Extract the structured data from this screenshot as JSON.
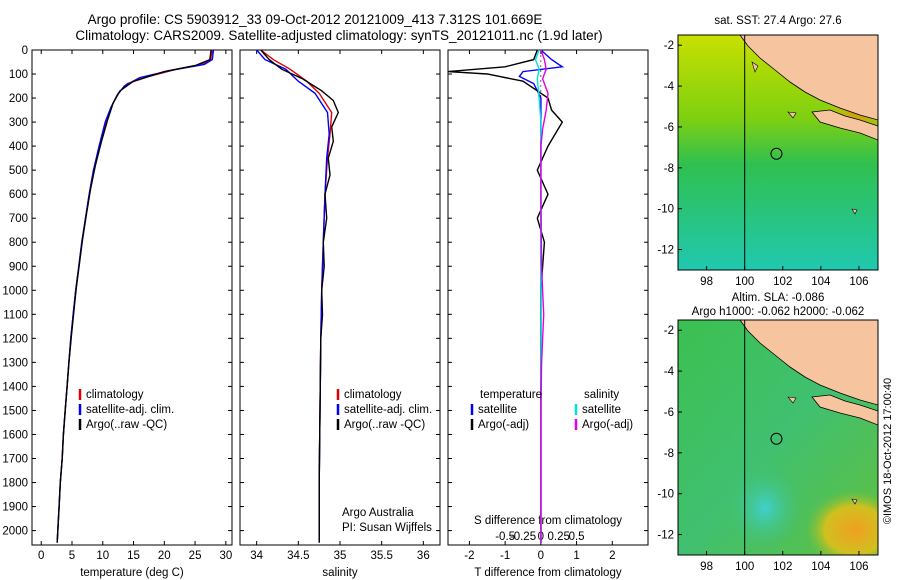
{
  "title_line1": "Argo profile: CS 5903912_33 09-Oct-2012 20121009_413 7.312S 101.669E",
  "title_line2": "Climatology: CARS2009. Satellite-adjusted climatology: synTS_20121011.nc (1.9d later)",
  "credit": {
    "line1": "Argo Australia",
    "line2": "PI: Susan Wijffels"
  },
  "sidebar_text": "©IMOS 18-Oct-2012 17:00:40",
  "colors": {
    "climatology": "#e00000",
    "satellite": "#0000ff",
    "argo": "#000000",
    "sat_salinity": "#00e0e0",
    "argo_salinity_adj": "#e000e0"
  },
  "chart_data": [
    {
      "type": "line",
      "name": "temperature",
      "xlabel": "temperature (deg C)",
      "ylabel": "",
      "xlim": [
        -1.5,
        31
      ],
      "ylim": [
        2060,
        0
      ],
      "xticks": [
        0,
        5,
        10,
        15,
        20,
        25,
        30
      ],
      "yticks": [
        0,
        100,
        200,
        300,
        400,
        500,
        600,
        700,
        800,
        900,
        1000,
        1100,
        1200,
        1300,
        1400,
        1500,
        1600,
        1700,
        1800,
        1900,
        2000
      ],
      "legend": [
        "climatology",
        "satellite-adj. clim.",
        "Argo(..raw -QC)"
      ],
      "series": [
        {
          "name": "climatology",
          "color": "#e00000",
          "points": [
            [
              27.8,
              0
            ],
            [
              27.5,
              40
            ],
            [
              26,
              60
            ],
            [
              22,
              80
            ],
            [
              17.5,
              110
            ],
            [
              14,
              140
            ],
            [
              12.5,
              180
            ],
            [
              11.5,
              230
            ],
            [
              10.5,
              300
            ],
            [
              9.5,
              400
            ],
            [
              8.5,
              500
            ],
            [
              7.8,
              600
            ],
            [
              7.2,
              700
            ],
            [
              6.6,
              800
            ],
            [
              6.1,
              900
            ],
            [
              5.6,
              1000
            ],
            [
              5.2,
              1100
            ],
            [
              4.8,
              1200
            ],
            [
              4.5,
              1300
            ],
            [
              4.2,
              1400
            ],
            [
              3.9,
              1500
            ],
            [
              3.6,
              1600
            ],
            [
              3.4,
              1700
            ],
            [
              3.1,
              1800
            ],
            [
              2.9,
              1900
            ],
            [
              2.7,
              2000
            ],
            [
              2.6,
              2050
            ]
          ]
        },
        {
          "name": "satellite-adj. clim.",
          "color": "#0000ff",
          "points": [
            [
              28,
              0
            ],
            [
              27.8,
              40
            ],
            [
              26.5,
              60
            ],
            [
              21,
              85
            ],
            [
              16,
              115
            ],
            [
              13.5,
              150
            ],
            [
              12.3,
              190
            ],
            [
              11.3,
              240
            ],
            [
              10.4,
              300
            ],
            [
              9.4,
              400
            ],
            [
              8.5,
              500
            ],
            [
              7.8,
              600
            ],
            [
              7.2,
              700
            ],
            [
              6.6,
              800
            ],
            [
              6.1,
              900
            ],
            [
              5.6,
              1000
            ],
            [
              5.2,
              1100
            ],
            [
              4.8,
              1200
            ],
            [
              4.5,
              1300
            ],
            [
              4.2,
              1400
            ],
            [
              3.9,
              1500
            ],
            [
              3.6,
              1600
            ],
            [
              3.4,
              1700
            ],
            [
              3.1,
              1800
            ],
            [
              2.9,
              1900
            ],
            [
              2.7,
              2000
            ],
            [
              2.6,
              2050
            ]
          ]
        },
        {
          "name": "Argo(..raw -QC)",
          "color": "#000000",
          "points": [
            [
              27.6,
              0
            ],
            [
              27.4,
              40
            ],
            [
              25,
              65
            ],
            [
              20,
              90
            ],
            [
              15,
              130
            ],
            [
              12.8,
              170
            ],
            [
              11.7,
              220
            ],
            [
              10.8,
              290
            ],
            [
              9.8,
              380
            ],
            [
              8.8,
              480
            ],
            [
              8,
              580
            ],
            [
              7.3,
              690
            ],
            [
              6.7,
              790
            ],
            [
              6.2,
              890
            ],
            [
              5.7,
              990
            ],
            [
              5.3,
              1090
            ],
            [
              4.9,
              1190
            ],
            [
              4.5,
              1300
            ],
            [
              4.2,
              1400
            ],
            [
              3.9,
              1500
            ],
            [
              3.6,
              1600
            ],
            [
              3.4,
              1700
            ],
            [
              3.1,
              1800
            ],
            [
              2.9,
              1900
            ],
            [
              2.7,
              2000
            ],
            [
              2.6,
              2050
            ]
          ]
        }
      ]
    },
    {
      "type": "line",
      "name": "salinity",
      "xlabel": "salinity",
      "ylabel": "",
      "xlim": [
        33.8,
        36.2
      ],
      "ylim": [
        2060,
        0
      ],
      "xticks": [
        34,
        34.5,
        35,
        35.5,
        36
      ],
      "xticklabels": [
        "34",
        "34.5",
        "35",
        "35.5",
        "36"
      ],
      "legend": [
        "climatology",
        "satellite-adj. clim.",
        "Argo(..raw -QC)"
      ],
      "series": [
        {
          "name": "climatology",
          "color": "#e00000",
          "points": [
            [
              34.05,
              0
            ],
            [
              34.2,
              40
            ],
            [
              34.4,
              80
            ],
            [
              34.6,
              130
            ],
            [
              34.75,
              180
            ],
            [
              34.9,
              260
            ],
            [
              34.88,
              350
            ],
            [
              34.85,
              450
            ],
            [
              34.82,
              600
            ],
            [
              34.8,
              800
            ],
            [
              34.78,
              1000
            ],
            [
              34.77,
              1200
            ],
            [
              34.76,
              1500
            ],
            [
              34.75,
              1800
            ],
            [
              34.75,
              2050
            ]
          ]
        },
        {
          "name": "satellite-adj. clim.",
          "color": "#0000ff",
          "points": [
            [
              34.0,
              0
            ],
            [
              34.1,
              40
            ],
            [
              34.35,
              80
            ],
            [
              34.5,
              130
            ],
            [
              34.7,
              180
            ],
            [
              34.85,
              260
            ],
            [
              34.87,
              350
            ],
            [
              34.84,
              450
            ],
            [
              34.82,
              600
            ],
            [
              34.8,
              800
            ],
            [
              34.78,
              1000
            ],
            [
              34.77,
              1200
            ],
            [
              34.76,
              1500
            ],
            [
              34.75,
              1800
            ],
            [
              34.75,
              2050
            ]
          ]
        },
        {
          "name": "Argo(..raw -QC)",
          "color": "#000000",
          "points": [
            [
              34.05,
              0
            ],
            [
              34.15,
              40
            ],
            [
              34.3,
              80
            ],
            [
              34.55,
              120
            ],
            [
              34.78,
              170
            ],
            [
              34.92,
              210
            ],
            [
              34.98,
              260
            ],
            [
              34.9,
              320
            ],
            [
              34.92,
              380
            ],
            [
              34.86,
              450
            ],
            [
              34.88,
              520
            ],
            [
              34.82,
              600
            ],
            [
              34.84,
              700
            ],
            [
              34.8,
              800
            ],
            [
              34.81,
              900
            ],
            [
              34.78,
              1000
            ],
            [
              34.79,
              1100
            ],
            [
              34.77,
              1200
            ],
            [
              34.76,
              1500
            ],
            [
              34.75,
              1800
            ],
            [
              34.75,
              2050
            ]
          ]
        }
      ]
    },
    {
      "type": "line",
      "name": "difference",
      "xlabel": "T difference from climatology",
      "xlabel_top": "S difference from climatology",
      "xlim": [
        -2.6,
        3
      ],
      "ylim": [
        2060,
        0
      ],
      "xticks": [
        -2,
        -1,
        0,
        1,
        2
      ],
      "s_ticks": [
        -0.5,
        -0.25,
        0,
        0.25,
        0.5
      ],
      "s_ticklabels": [
        "-0.5",
        "-0.25",
        "0",
        "0.25",
        "0.5"
      ],
      "legend_left_title": "temperature",
      "legend_right_title": "salinity",
      "legend": [
        "satellite",
        "Argo(-adj)",
        "satellite",
        "Argo(-adj)"
      ],
      "series": [
        {
          "name": "T satellite",
          "color": "#0000ff",
          "points": [
            [
              0,
              0
            ],
            [
              0.3,
              40
            ],
            [
              0.6,
              70
            ],
            [
              -0.5,
              90
            ],
            [
              -0.6,
              110
            ],
            [
              -0.2,
              140
            ],
            [
              0,
              200
            ],
            [
              0,
              300
            ],
            [
              0,
              500
            ],
            [
              0,
              800
            ],
            [
              0,
              1200
            ],
            [
              0,
              1600
            ],
            [
              0,
              2050
            ]
          ]
        },
        {
          "name": "T Argo(-adj)",
          "color": "#000000",
          "points": [
            [
              -0.1,
              0
            ],
            [
              -0.2,
              40
            ],
            [
              -1,
              70
            ],
            [
              -2.6,
              90
            ],
            [
              -1.5,
              100
            ],
            [
              -0.5,
              130
            ],
            [
              0.2,
              200
            ],
            [
              0.3,
              250
            ],
            [
              0.6,
              300
            ],
            [
              0.2,
              400
            ],
            [
              -0.1,
              500
            ],
            [
              0.2,
              600
            ],
            [
              -0.1,
              700
            ],
            [
              0.1,
              800
            ],
            [
              0,
              1000
            ],
            [
              0,
              1500
            ],
            [
              0,
              2050
            ]
          ]
        },
        {
          "name": "S satellite",
          "color": "#00e0e0",
          "points": [
            [
              -0.05,
              0
            ],
            [
              -0.15,
              40
            ],
            [
              -0.05,
              80
            ],
            [
              -0.1,
              120
            ],
            [
              -0.05,
              200
            ],
            [
              0,
              300
            ],
            [
              0,
              500
            ],
            [
              0,
              800
            ],
            [
              0,
              1200
            ],
            [
              0,
              1600
            ],
            [
              0,
              2050
            ]
          ]
        },
        {
          "name": "S Argo(-adj)",
          "color": "#e000e0",
          "points": [
            [
              0,
              0
            ],
            [
              0.1,
              40
            ],
            [
              0.15,
              80
            ],
            [
              0.05,
              120
            ],
            [
              0.2,
              180
            ],
            [
              0.15,
              250
            ],
            [
              0.05,
              330
            ],
            [
              0,
              400
            ],
            [
              0,
              600
            ],
            [
              0.02,
              900
            ],
            [
              0.05,
              1000
            ],
            [
              0.08,
              1100
            ],
            [
              0.02,
              1300
            ],
            [
              0,
              1500
            ],
            [
              0,
              2050
            ]
          ]
        }
      ]
    },
    {
      "type": "heatmap",
      "name": "sst-map",
      "title": "sat. SST: 27.4  Argo: 27.6",
      "xlim": [
        96.5,
        107
      ],
      "ylim": [
        -13,
        -1.5
      ],
      "xticks": [
        98,
        100,
        102,
        104,
        106
      ],
      "yticks": [
        -2,
        -4,
        -6,
        -8,
        -10,
        -12
      ],
      "argo_position": [
        101.669,
        -7.312
      ]
    },
    {
      "type": "heatmap",
      "name": "sla-map",
      "title_line1": "Altim. SLA: -0.086",
      "title_line2": "Argo h1000: -0.062 h2000: -0.062",
      "xlim": [
        96.5,
        107
      ],
      "ylim": [
        -13,
        -1.5
      ],
      "xticks": [
        98,
        100,
        102,
        104,
        106
      ],
      "yticks": [
        -2,
        -4,
        -6,
        -8,
        -10,
        -12
      ],
      "argo_position": [
        101.669,
        -7.312
      ]
    }
  ]
}
